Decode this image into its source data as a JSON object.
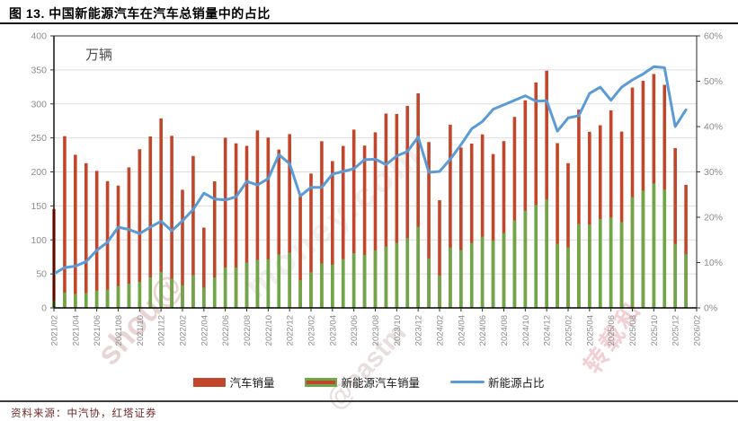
{
  "title": "图 13. 中国新能源汽车在汽车总销量中的占比",
  "source": "资料来源：中汽协，红塔证券",
  "colors": {
    "auto_bar": "#c1462a",
    "nev_bar": "#6fa648",
    "ratio_line": "#5b9bd5",
    "grid": "#dddddd",
    "axis": "#262626",
    "tick_label": "#8c8c8c",
    "unit_label": "#4d4d4d"
  },
  "legend": [
    {
      "label": "汽车销量",
      "type": "bar"
    },
    {
      "label": "新能源汽车销量",
      "type": "bar-striped"
    },
    {
      "label": "新能源占比",
      "type": "line"
    }
  ],
  "watermarks": {
    "w1": "shou@",
    "w2": "@eastm",
    "w3": "money.com",
    "w4": "转载和"
  },
  "chart_data": {
    "type": "combo-bar-line",
    "title": "图 13. 中国新能源汽车在汽车总销量中的占比",
    "unit_label": "万辆",
    "grid": "horizontal",
    "legend_position": "bottom",
    "y_left": {
      "min": 0,
      "max": 400,
      "step": 50
    },
    "y_right": {
      "min": 0,
      "max": 60,
      "step": 10,
      "suffix": "%"
    },
    "x_tick_every": 2,
    "months": [
      "2021/02",
      "2021/03",
      "2021/04",
      "2021/05",
      "2021/06",
      "2021/07",
      "2021/08",
      "2021/09",
      "2021/10",
      "2021/11",
      "2021/12",
      "2022/01",
      "2022/02",
      "2022/03",
      "2022/04",
      "2022/05",
      "2022/06",
      "2022/07",
      "2022/08",
      "2022/09",
      "2022/10",
      "2022/11",
      "2022/12",
      "2023/01",
      "2023/02",
      "2023/03",
      "2023/04",
      "2023/05",
      "2023/06",
      "2023/07",
      "2023/08",
      "2023/09",
      "2023/10",
      "2023/11",
      "2023/12",
      "2024/01",
      "2024/02",
      "2024/03",
      "2024/04",
      "2024/05",
      "2024/06",
      "2024/07",
      "2024/08",
      "2024/09",
      "2024/10",
      "2024/11",
      "2024/12",
      "2025/01",
      "2025/02",
      "2025/03",
      "2025/04",
      "2025/05",
      "2025/06",
      "2025/07",
      "2025/08",
      "2025/09",
      "2025/10",
      "2025/11",
      "2025/12",
      "2026/01",
      "2026/02"
    ],
    "series": [
      {
        "name": "汽车销量",
        "type": "bar",
        "axis": "left",
        "color": "#c1462a",
        "values": [
          145.5,
          252.6,
          225.2,
          212.8,
          201.5,
          186.4,
          179.9,
          206.7,
          233.3,
          252.2,
          278.6,
          253.1,
          173.7,
          223.4,
          118.1,
          186.2,
          250.2,
          242.0,
          238.3,
          261.0,
          250.5,
          232.8,
          255.6,
          164.9,
          197.6,
          245.1,
          215.9,
          238.2,
          262.2,
          238.7,
          258.2,
          285.8,
          285.3,
          297.0,
          315.6,
          243.9,
          158.4,
          269.4,
          235.9,
          241.7,
          255.2,
          226.2,
          245.3,
          280.9,
          305.3,
          331.6,
          348.9,
          242.3,
          212.9,
          291.5,
          259.0,
          268.6,
          290.4,
          259.3,
          324.0,
          334.0,
          344.0,
          328.0,
          235.0,
          181.0
        ]
      },
      {
        "name": "新能源汽车销量",
        "type": "bar",
        "axis": "left",
        "color": "#6fa648",
        "values": [
          11.0,
          22.6,
          20.6,
          21.7,
          25.6,
          27.1,
          32.1,
          35.7,
          38.3,
          45.0,
          53.1,
          43.1,
          33.4,
          48.4,
          29.9,
          44.7,
          59.6,
          59.3,
          66.6,
          70.8,
          71.4,
          78.6,
          81.4,
          40.8,
          52.5,
          65.3,
          63.6,
          71.7,
          80.6,
          78.0,
          84.6,
          90.4,
          95.6,
          102.6,
          119.1,
          72.9,
          47.7,
          88.3,
          85.0,
          95.5,
          104.9,
          99.1,
          110.0,
          128.7,
          143.0,
          151.2,
          159.6,
          94.4,
          89.2,
          123.7,
          122.6,
          130.7,
          133.0,
          126.2,
          163.0,
          172.5,
          183.0,
          174.0,
          94.0,
          79.0
        ]
      },
      {
        "name": "新能源占比",
        "type": "line",
        "axis": "right",
        "color": "#5b9bd5",
        "values": [
          7.5,
          8.9,
          9.2,
          10.2,
          12.7,
          14.5,
          17.8,
          17.3,
          16.4,
          17.8,
          19.1,
          17.0,
          19.2,
          21.7,
          25.3,
          24.0,
          23.8,
          24.5,
          27.9,
          27.1,
          28.5,
          33.8,
          31.8,
          24.7,
          26.6,
          26.6,
          29.5,
          30.1,
          30.7,
          32.7,
          32.8,
          31.6,
          33.5,
          34.5,
          37.7,
          29.9,
          30.1,
          32.8,
          36.0,
          39.5,
          41.1,
          43.8,
          44.8,
          45.8,
          46.8,
          45.6,
          45.7,
          39.0,
          41.9,
          42.4,
          47.3,
          48.7,
          45.8,
          48.7,
          50.3,
          51.6,
          53.2,
          53.0,
          40.0,
          43.7
        ]
      }
    ]
  }
}
